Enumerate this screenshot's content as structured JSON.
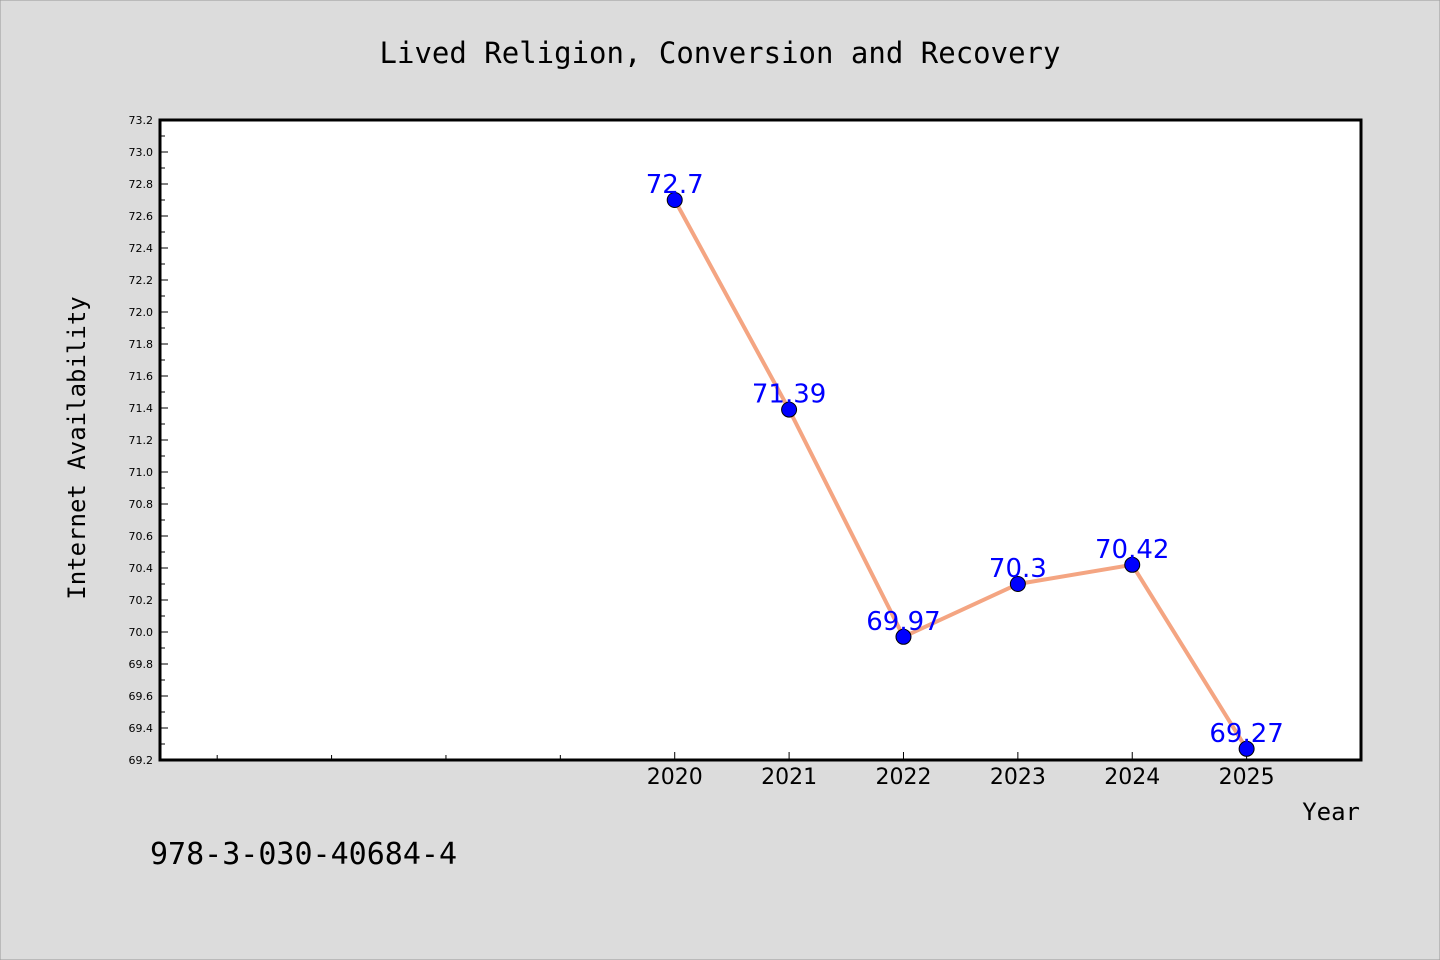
{
  "figure": {
    "background": "#dcdcdc",
    "plot_background": "#ffffff",
    "footnote": "978-3-030-40684-4"
  },
  "chart_data": {
    "type": "line",
    "title": "Lived Religion, Conversion and Recovery",
    "xlabel": "Year",
    "ylabel": "Internet Availability",
    "x": [
      2020,
      2021,
      2022,
      2023,
      2024,
      2025
    ],
    "x_tick_labels": [
      "2020",
      "2021",
      "2022",
      "2023",
      "2024",
      "2025"
    ],
    "xlim": [
      2015.5,
      2026.0
    ],
    "ylim": [
      69.2,
      73.2
    ],
    "y_tick_step": 0.2,
    "y_minor_step": 0.1,
    "x_minor_ticks": [
      2016,
      2017,
      2018,
      2019
    ],
    "grid": false,
    "series": [
      {
        "values": [
          72.7,
          71.39,
          69.97,
          70.3,
          70.42,
          69.27
        ],
        "data_labels": [
          "72.7",
          "71.39",
          "69.97",
          "70.3",
          "70.42",
          "69.27"
        ],
        "line_color": "#f4a582",
        "marker_color": "#0000ff",
        "label_color": "#0000ff"
      }
    ]
  }
}
